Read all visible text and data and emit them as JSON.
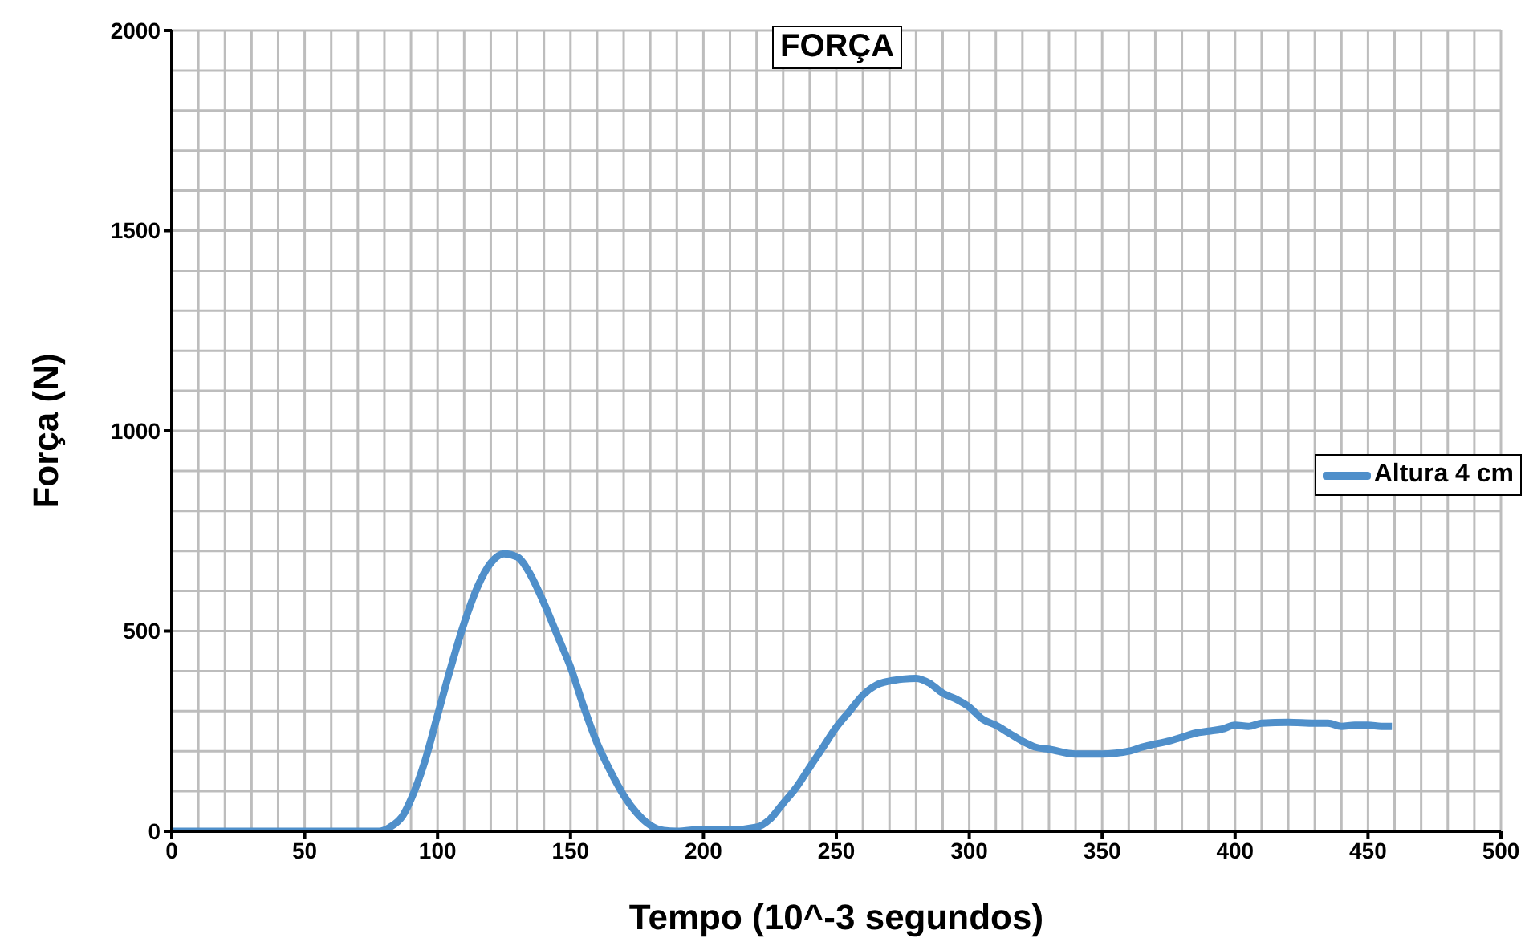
{
  "chart_data": {
    "type": "line",
    "title": "FORÇA",
    "xlabel": "Tempo  (10^-3  segundos)",
    "ylabel": "Força (N)",
    "xlim": [
      0,
      500
    ],
    "xticks": [
      0,
      50,
      100,
      150,
      200,
      250,
      300,
      350,
      400,
      450,
      500
    ],
    "ylim": [
      0,
      2000
    ],
    "yticks": [
      0,
      500,
      1000,
      1500,
      2000
    ],
    "grid": true,
    "legend": "right",
    "marker": "none",
    "line_style": "solid",
    "x": [
      0,
      10,
      20,
      30,
      40,
      50,
      60,
      70,
      78,
      82,
      87,
      90,
      95,
      100,
      105,
      110,
      115,
      120,
      125,
      130,
      135,
      140,
      145,
      150,
      155,
      160,
      165,
      170,
      175,
      180,
      185,
      190,
      200,
      210,
      220,
      225,
      230,
      235,
      240,
      245,
      250,
      255,
      260,
      265,
      270,
      275,
      280,
      285,
      290,
      295,
      300,
      305,
      310,
      315,
      320,
      325,
      330,
      340,
      350,
      355,
      360,
      365,
      370,
      375,
      380,
      385,
      390,
      395,
      400,
      405,
      410,
      420,
      430,
      435,
      440,
      445,
      450,
      455,
      459
    ],
    "series": [
      {
        "name": "Altura  4 cm",
        "color": "#4f8fca",
        "values": [
          0,
          0,
          0,
          0,
          0,
          0,
          0,
          0,
          0,
          10,
          40,
          80,
          170,
          290,
          410,
          520,
          610,
          670,
          693,
          685,
          640,
          570,
          490,
          410,
          310,
          220,
          150,
          90,
          45,
          15,
          2,
          0,
          5,
          3,
          10,
          30,
          70,
          110,
          160,
          210,
          260,
          300,
          340,
          365,
          375,
          380,
          382,
          370,
          345,
          330,
          310,
          280,
          265,
          245,
          225,
          210,
          205,
          193,
          193,
          195,
          200,
          210,
          218,
          225,
          235,
          245,
          250,
          255,
          265,
          262,
          270,
          272,
          270,
          270,
          262,
          265,
          265,
          262,
          262
        ]
      }
    ]
  }
}
